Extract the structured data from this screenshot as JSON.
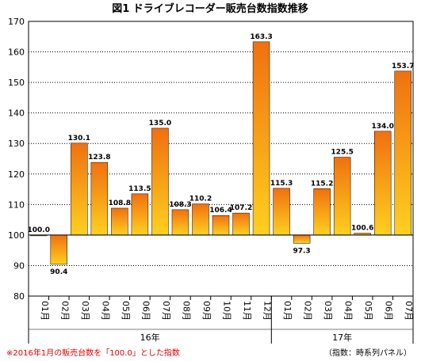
{
  "chart_data": {
    "type": "bar",
    "title": "図1 ドライブレコーダー販売台数指数推移",
    "categories": [
      "01月",
      "02月",
      "03月",
      "04月",
      "05月",
      "06月",
      "07月",
      "08月",
      "09月",
      "10月",
      "11月",
      "12月",
      "01月",
      "02月",
      "03月",
      "04月",
      "05月",
      "06月",
      "07月"
    ],
    "values": [
      100.0,
      90.4,
      130.1,
      123.8,
      108.8,
      113.5,
      135.0,
      108.3,
      110.2,
      106.4,
      107.2,
      163.3,
      115.3,
      97.3,
      115.2,
      125.5,
      100.6,
      134.0,
      153.7
    ],
    "value_labels": [
      "100.0",
      "90.4",
      "130.1",
      "123.8",
      "108.8",
      "113.5",
      "135.0",
      "108.3",
      "110.2",
      "106.4",
      "107.2",
      "163.3",
      "115.3",
      "97.3",
      "115.2",
      "125.5",
      "100.6",
      "134.0",
      "153.7"
    ],
    "baseline": 100,
    "ylim": [
      80,
      170
    ],
    "yticks": [
      "80",
      "90",
      "100",
      "110",
      "120",
      "130",
      "140",
      "150",
      "160",
      "170"
    ],
    "groups": [
      {
        "label": "16年",
        "count": 12
      },
      {
        "label": "17年",
        "count": 7
      }
    ],
    "grid": true,
    "colors": {
      "bar_top": "#f07010",
      "bar_bottom": "#ffd020",
      "border": "#000000",
      "grid": "#000000"
    }
  },
  "footnote_left": "※2016年1月の販売台数を「100.0」とした指数",
  "footnote_right": "（指数：時系列パネル）"
}
